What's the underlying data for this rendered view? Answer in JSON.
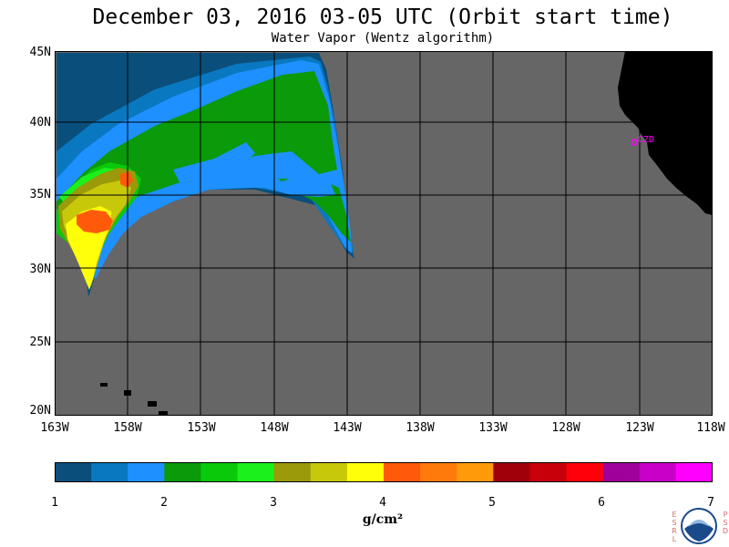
{
  "title": "December 03, 2016  03-05 UTC  (Orbit start time)",
  "subtitle": "Water Vapor (Wentz algorithm)",
  "lat_labels": [
    "45N",
    "40N",
    "35N",
    "30N",
    "25N",
    "20N"
  ],
  "lon_labels": [
    "163W",
    "158W",
    "153W",
    "148W",
    "143W",
    "138W",
    "133W",
    "128W",
    "123W",
    "118W"
  ],
  "station_label": "CZD",
  "colorbar": {
    "ticks": [
      "1",
      "2",
      "3",
      "4",
      "5",
      "6",
      "7"
    ],
    "units": "g/cm²",
    "colors": [
      "#0a4f7c",
      "#0a78c0",
      "#1e90ff",
      "#0a9a0a",
      "#0ac80a",
      "#1cf01c",
      "#9a9a0a",
      "#c8c80a",
      "#ffff0a",
      "#ff5a0a",
      "#ff7a0a",
      "#ff9a0a",
      "#a0000a",
      "#c8000a",
      "#ff000a",
      "#a0009a",
      "#c800c8",
      "#ff00ff"
    ]
  },
  "colors": {
    "ocean_nodata": "#666666",
    "land": "#000000",
    "grid": "#000000",
    "station": "#ff00ff"
  },
  "logo": {
    "left_text": "ESRL",
    "right_text": "PSD",
    "name": "NOAA"
  }
}
